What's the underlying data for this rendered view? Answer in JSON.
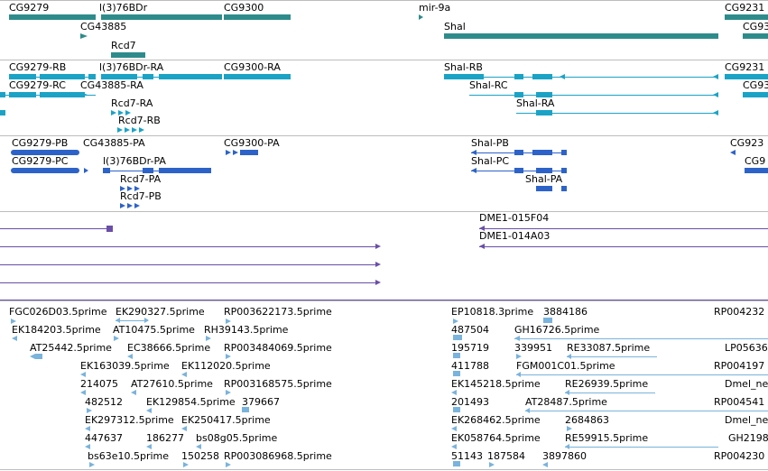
{
  "colors": {
    "gene": "#2e8b8b",
    "mrna_rb": "#1ba3c6",
    "mrna_pb": "#2d63c8",
    "clone": "#6a4fa8",
    "est": "#7ab3dc",
    "separator": "#bdbdbd"
  },
  "tracks": {
    "genes": [
      "CG9279",
      "l(3)76BDr",
      "CG9300",
      "mir-9a",
      "CG9231",
      "CG43885",
      "Shal",
      "CG93",
      "Rcd7"
    ],
    "mrna_a": [
      "CG9279-RB",
      "l(3)76BDr-RA",
      "CG9300-RA",
      "Shal-RB",
      "CG9231",
      "CG9279-RC",
      "CG43885-RA",
      "Shal-RC",
      "CG93",
      "Rcd7-RA",
      "Shal-RA",
      "Rcd7-RB"
    ],
    "mrna_b": [
      "CG9279-PB",
      "CG43885-PA",
      "CG9300-PA",
      "Shal-PB",
      "CG923",
      "CG9279-PC",
      "l(3)76BDr-PA",
      "Shal-PC",
      "CG9",
      "Rcd7-PA",
      "Shal-PA",
      "Rcd7-PB"
    ],
    "clones": [
      "DME1-015F04",
      "DME1-014A03"
    ],
    "ests": [
      "FGC026D03.5prime",
      "EK290327.5prime",
      "RP003622173.5prime",
      "EP10818.3prime",
      "3884186",
      "RP004232",
      "EK184203.5prime",
      "AT10475.5prime",
      "RH39143.5prime",
      "487504",
      "GH16726.5prime",
      "AT25442.5prime",
      "EC38666.5prime",
      "RP003484069.5prime",
      "195719",
      "339951",
      "RE33087.5prime",
      "LP05636",
      "EK163039.5prime",
      "EK112020.5prime",
      "411788",
      "FGM001C01.5prime",
      "RP004197",
      "214075",
      "AT27610.5prime",
      "RP003168575.5prime",
      "EK145218.5prime",
      "RE26939.5prime",
      "Dmel_ne",
      "482512",
      "EK129854.5prime",
      "379667",
      "201493",
      "AT28487.5prime",
      "RP004541",
      "EK297312.5prime",
      "EK250417.5prime",
      "EK268462.5prime",
      "2684863",
      "Dmel_ne",
      "447637",
      "186277",
      "bs08g05.5prime",
      "EK058764.5prime",
      "RE59915.5prime",
      "GH2198",
      "bs63e10.5prime",
      "150258",
      "RP003086968.5prime",
      "51143",
      "187584",
      "3897860",
      "RP004230"
    ]
  }
}
